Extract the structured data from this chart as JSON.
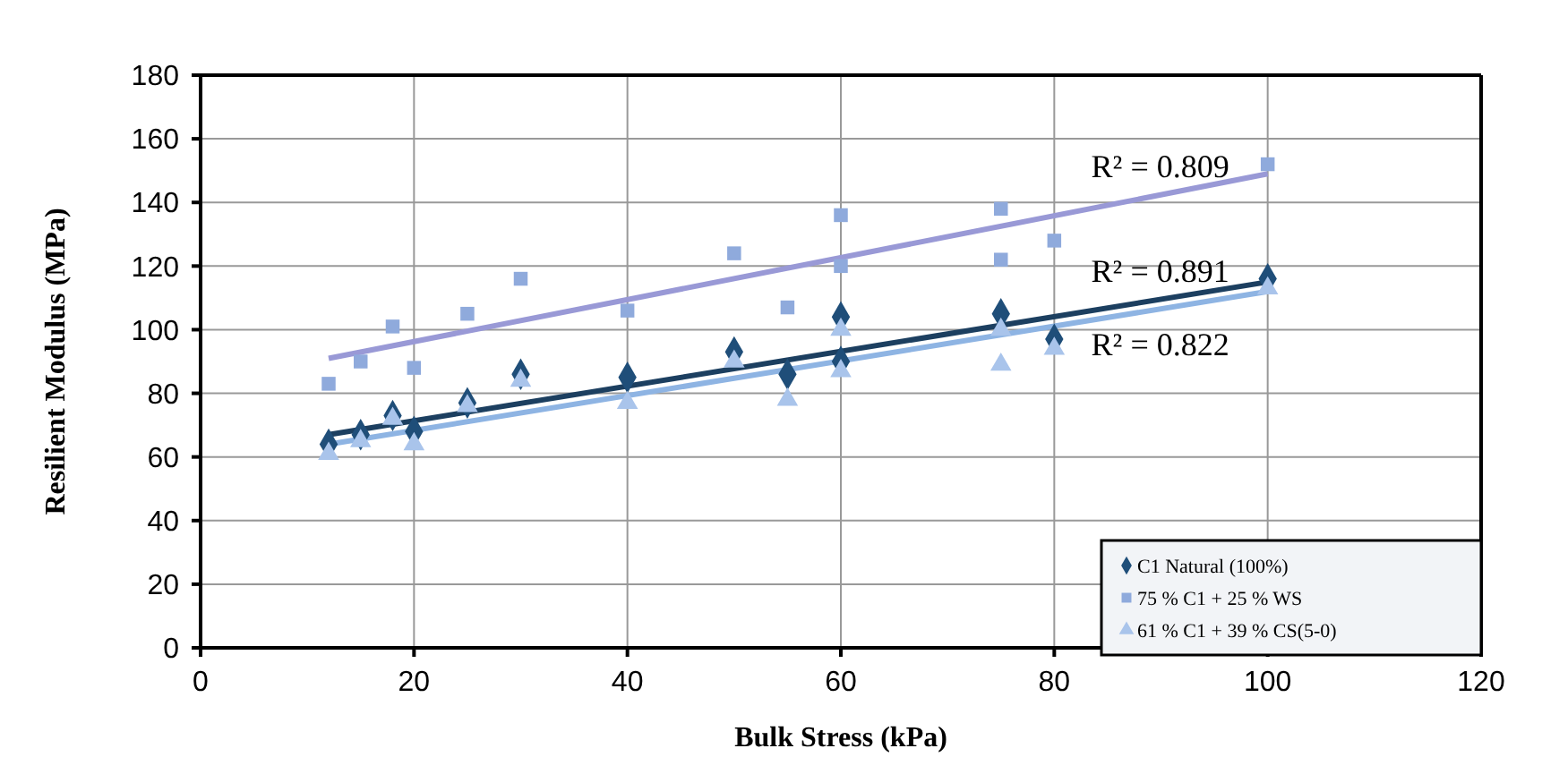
{
  "chart_data": {
    "type": "scatter",
    "xlabel": "Bulk Stress (kPa)",
    "ylabel": "Resilient Modulus (MPa)",
    "xlim": [
      0,
      120
    ],
    "xticks": [
      0,
      20,
      40,
      60,
      80,
      100,
      120
    ],
    "ylim": [
      0,
      180
    ],
    "yticks": [
      0,
      20,
      40,
      60,
      80,
      100,
      120,
      140,
      160,
      180
    ],
    "grid": true,
    "legend": "bottom right",
    "series": [
      {
        "name": "C1 Natural (100%)",
        "color": "#1f4e79",
        "marker": "diamond",
        "x": [
          12,
          15,
          18,
          20,
          25,
          30,
          40,
          50,
          55,
          60,
          60,
          75,
          80,
          100
        ],
        "values": [
          64,
          67,
          73,
          68,
          77,
          86,
          85,
          93,
          86,
          104,
          90,
          105,
          97,
          116
        ]
      },
      {
        "name": "75 % C1 + 25 % WS",
        "color": "#8faadc",
        "marker": "square",
        "x": [
          12,
          15,
          18,
          20,
          25,
          30,
          40,
          50,
          55,
          60,
          60,
          75,
          75,
          80,
          100
        ],
        "values": [
          83,
          90,
          101,
          88,
          105,
          116,
          106,
          124,
          107,
          136,
          120,
          138,
          122,
          128,
          152
        ]
      },
      {
        "name": "61 % C1 + 39 % CS(5-0)",
        "color": "#a9c4eb",
        "marker": "triangle",
        "x": [
          12,
          15,
          18,
          20,
          25,
          30,
          40,
          50,
          55,
          60,
          60,
          75,
          75,
          80,
          100
        ],
        "values": [
          61,
          65,
          72,
          64,
          76,
          84,
          77,
          90,
          78,
          100,
          87,
          89,
          100,
          94,
          113
        ]
      },
      {
        "type": "line",
        "color": "#1c3f60",
        "marker": "none",
        "x": [
          12,
          100
        ],
        "values": [
          67,
          115
        ]
      },
      {
        "type": "line",
        "color": "#9999d6",
        "marker": "none",
        "x": [
          12,
          100
        ],
        "values": [
          91,
          149
        ]
      },
      {
        "type": "line",
        "color": "#8eb4e3",
        "marker": "none",
        "x": [
          12,
          100
        ],
        "values": [
          64,
          112
        ]
      }
    ],
    "annotations": [
      "R² = 0.891",
      "R² = 0.809",
      "R² = 0.822"
    ]
  }
}
